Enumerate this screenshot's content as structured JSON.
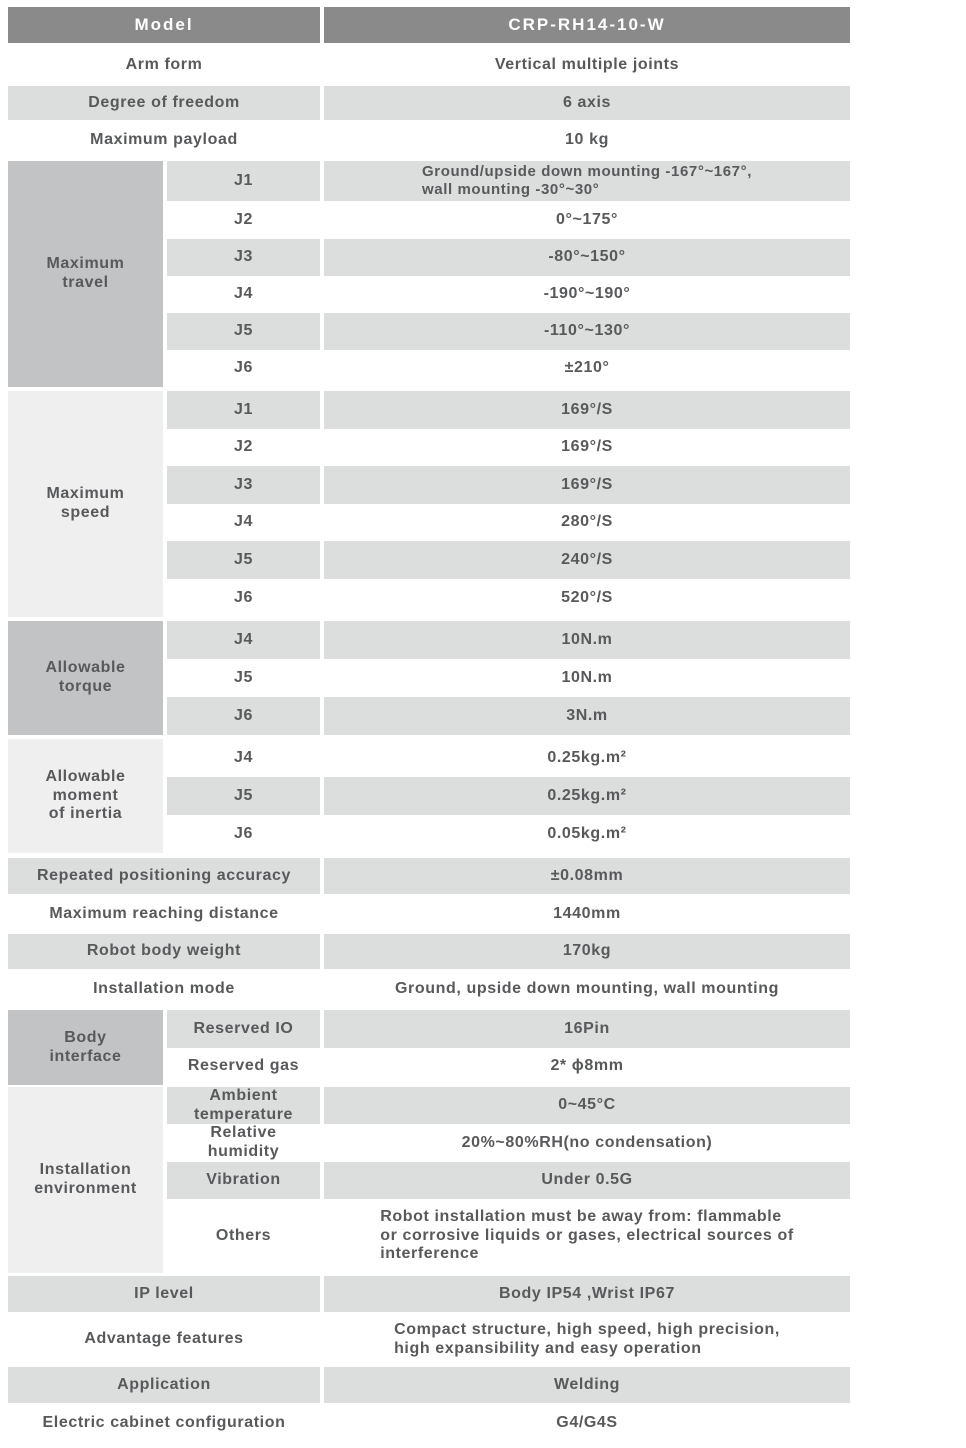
{
  "colors": {
    "header_bg": "#8a8a8a",
    "header_text": "#ffffff",
    "group_dark_bg": "#c2c3c4",
    "group_light_bg": "#efeff0",
    "stripe_bg": "#dcdddd",
    "text": "#58595b"
  },
  "header": {
    "label": "Model",
    "value": "CRP-RH14-10-W"
  },
  "rows_top": [
    {
      "label": "Arm form",
      "value": "Vertical multiple joints"
    },
    {
      "label": "Degree of freedom",
      "value": "6 axis"
    },
    {
      "label": "Maximum payload",
      "value": "10 kg"
    }
  ],
  "maximum_travel": {
    "label": "Maximum\ntravel",
    "joints": [
      {
        "joint": "J1",
        "value": "Ground/upside down mounting -167°~167°,\nwall mounting -30°~30°"
      },
      {
        "joint": "J2",
        "value": "0°~175°"
      },
      {
        "joint": "J3",
        "value": "-80°~150°"
      },
      {
        "joint": "J4",
        "value": "-190°~190°"
      },
      {
        "joint": "J5",
        "value": "-110°~130°"
      },
      {
        "joint": "J6",
        "value": "±210°"
      }
    ]
  },
  "maximum_speed": {
    "label": "Maximum\nspeed",
    "joints": [
      {
        "joint": "J1",
        "value": "169°/S"
      },
      {
        "joint": "J2",
        "value": "169°/S"
      },
      {
        "joint": "J3",
        "value": "169°/S"
      },
      {
        "joint": "J4",
        "value": "280°/S"
      },
      {
        "joint": "J5",
        "value": "240°/S"
      },
      {
        "joint": "J6",
        "value": "520°/S"
      }
    ]
  },
  "allowable_torque": {
    "label": "Allowable\ntorque",
    "joints": [
      {
        "joint": "J4",
        "value": "10N.m"
      },
      {
        "joint": "J5",
        "value": "10N.m"
      },
      {
        "joint": "J6",
        "value": "3N.m"
      }
    ]
  },
  "allowable_inertia": {
    "label": "Allowable\nmoment\nof inertia",
    "joints": [
      {
        "joint": "J4",
        "value": "0.25kg.m²"
      },
      {
        "joint": "J5",
        "value": "0.25kg.m²"
      },
      {
        "joint": "J6",
        "value": "0.05kg.m²"
      }
    ]
  },
  "rows_mid": [
    {
      "label": "Repeated positioning accuracy",
      "value": "±0.08mm"
    },
    {
      "label": "Maximum reaching distance",
      "value": "1440mm"
    },
    {
      "label": "Robot body weight",
      "value": "170kg"
    },
    {
      "label": "Installation mode",
      "value": "Ground, upside down mounting, wall mounting"
    }
  ],
  "body_interface": {
    "label": "Body\ninterface",
    "rows": [
      {
        "label": "Reserved IO",
        "value": "16Pin"
      },
      {
        "label": "Reserved gas",
        "value": "2* ϕ8mm"
      }
    ]
  },
  "installation_environment": {
    "label": "Installation\nenvironment",
    "rows": [
      {
        "label": "Ambient\ntemperature",
        "value": "0~45°C"
      },
      {
        "label": "Relative\nhumidity",
        "value": "20%~80%RH(no condensation)"
      },
      {
        "label": "Vibration",
        "value": "Under 0.5G"
      },
      {
        "label": "Others",
        "value": "Robot installation must be away from: flammable\nor corrosive liquids or gases, electrical sources of\ninterference"
      }
    ]
  },
  "rows_bottom": [
    {
      "label": "IP level",
      "value": "Body IP54 ,Wrist IP67"
    },
    {
      "label": "Advantage features",
      "value": "Compact structure, high speed, high precision,\nhigh expansibility and easy operation"
    },
    {
      "label": "Application",
      "value": "Welding"
    },
    {
      "label": "Electric cabinet configuration",
      "value": "G4/G4S"
    }
  ]
}
